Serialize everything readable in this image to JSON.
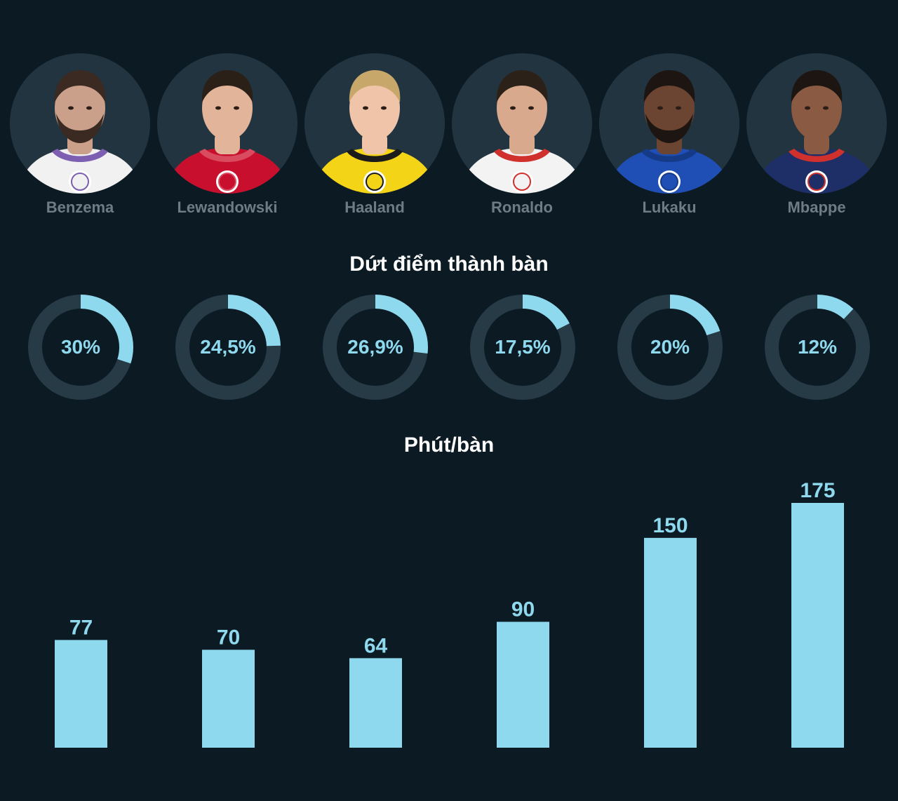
{
  "colors": {
    "background": "#0c1a23",
    "circle": "#213440",
    "track": "#273b47",
    "accent": "#8fd9ee",
    "name": "#6f7c86",
    "title": "#ffffff"
  },
  "players": [
    {
      "name": "Benzema",
      "photo": "player-photo",
      "crest": "real-madrid-crest",
      "kit": "#f1f1f1",
      "kit_trim": "#7c5fb0",
      "skin": "#caa08a",
      "hair": "#3a2a22",
      "beard": true
    },
    {
      "name": "Lewandowski",
      "photo": "player-photo",
      "crest": "bayern-crest",
      "kit": "#c8102e",
      "kit_trim": "#d94b5e",
      "skin": "#e2b59a",
      "hair": "#2a2018",
      "beard": false
    },
    {
      "name": "Haaland",
      "photo": "player-photo",
      "crest": "dortmund-crest",
      "kit": "#f3d417",
      "kit_trim": "#1b1b1b",
      "skin": "#efc4a8",
      "hair": "#c8a86a",
      "beard": false
    },
    {
      "name": "Ronaldo",
      "photo": "player-photo",
      "crest": "man-united-crest",
      "kit": "#f3f3f3",
      "kit_trim": "#d0312d",
      "skin": "#d8a98c",
      "hair": "#2c2119",
      "beard": false
    },
    {
      "name": "Lukaku",
      "photo": "player-photo",
      "crest": "chelsea-crest",
      "kit": "#1f4fb5",
      "kit_trim": "#153a88",
      "skin": "#6b4532",
      "hair": "#1d1512",
      "beard": true
    },
    {
      "name": "Mbappe",
      "photo": "player-photo",
      "crest": "psg-crest",
      "kit": "#1e2e66",
      "kit_trim": "#d0312d",
      "skin": "#8a5a42",
      "hair": "#1d1512",
      "beard": false
    }
  ],
  "conversion": {
    "title": "Dứt điểm thành bàn",
    "values": [
      30,
      24.5,
      26.9,
      17.5,
      20,
      12
    ],
    "labels": [
      "30%",
      "24,5%",
      "26,9%",
      "17,5%",
      "20%",
      "12%"
    ]
  },
  "minutes": {
    "title": "Phút/bàn"
  },
  "chart_data": {
    "type": "bar",
    "title": "Phút/bàn",
    "categories": [
      "Benzema",
      "Lewandowski",
      "Haaland",
      "Ronaldo",
      "Lukaku",
      "Mbappe"
    ],
    "values": [
      77,
      70,
      64,
      90,
      150,
      175
    ],
    "labels": [
      "77",
      "70",
      "64",
      "90",
      "150",
      "175"
    ],
    "ylim": [
      0,
      175
    ],
    "grid": false,
    "legend": "none"
  }
}
